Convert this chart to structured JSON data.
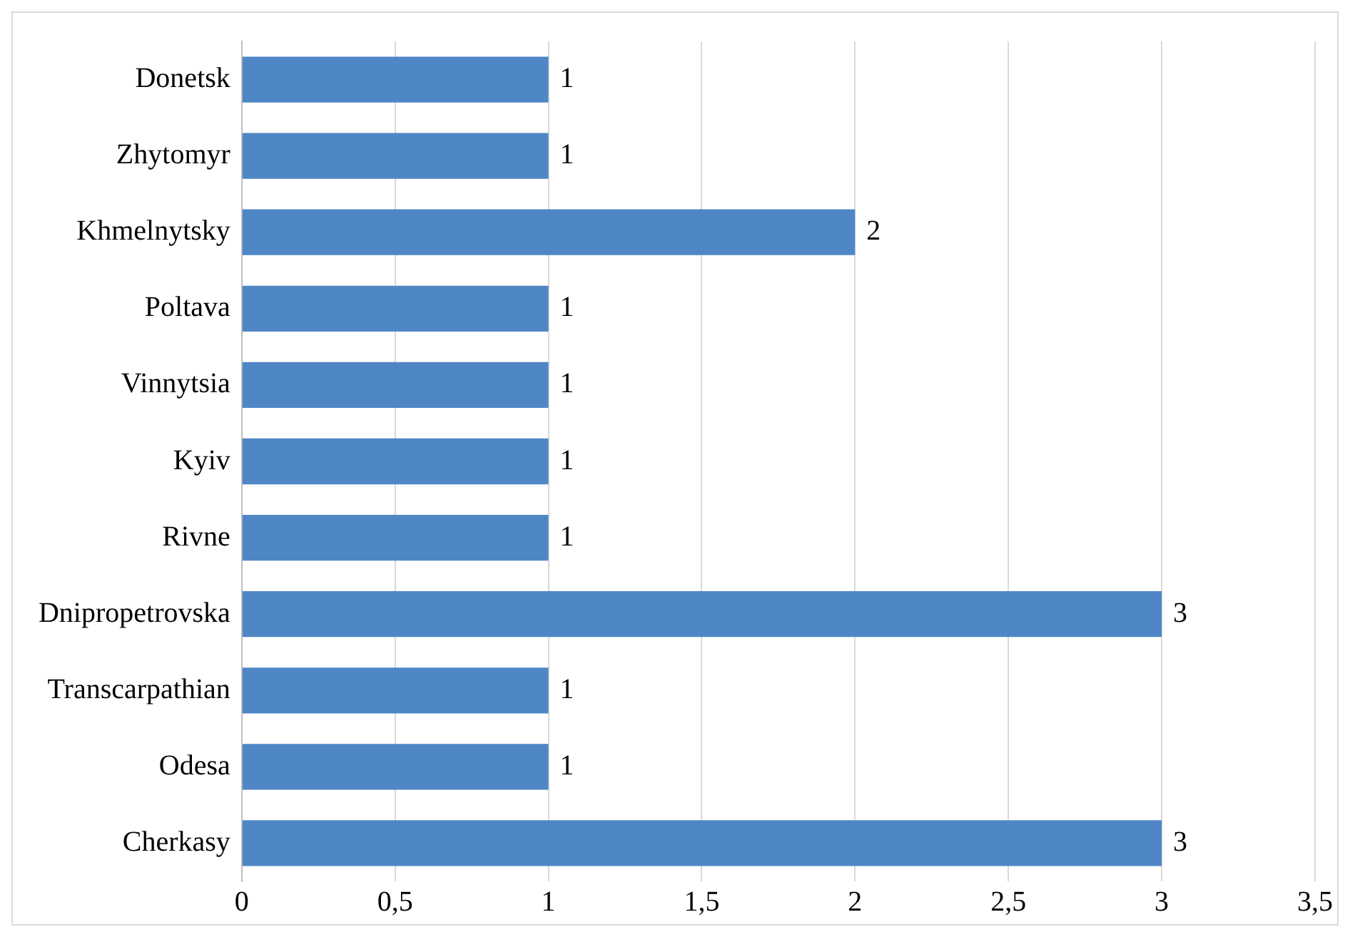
{
  "chart_data": {
    "type": "bar",
    "orientation": "horizontal",
    "categories": [
      "Donetsk",
      "Zhytomyr",
      "Khmelnytsky",
      "Poltava",
      "Vinnytsia",
      "Kyiv",
      "Rivne",
      "Dnipropetrovska",
      "Transcarpathian",
      "Odesa",
      "Cherkasy"
    ],
    "values": [
      1,
      1,
      2,
      1,
      1,
      1,
      1,
      3,
      1,
      1,
      3
    ],
    "color": "#4f86c6",
    "xlim": [
      0,
      3.5
    ],
    "xticks": [
      0,
      {
        "value": 0.5,
        "label": "0,5"
      },
      1,
      {
        "value": 1.5,
        "label": "1,5"
      },
      2,
      {
        "value": 2.5,
        "label": "2,5"
      },
      3,
      {
        "value": 3.5,
        "label": "3,5"
      }
    ],
    "grid": "x",
    "legend": false,
    "data_labels": true
  }
}
